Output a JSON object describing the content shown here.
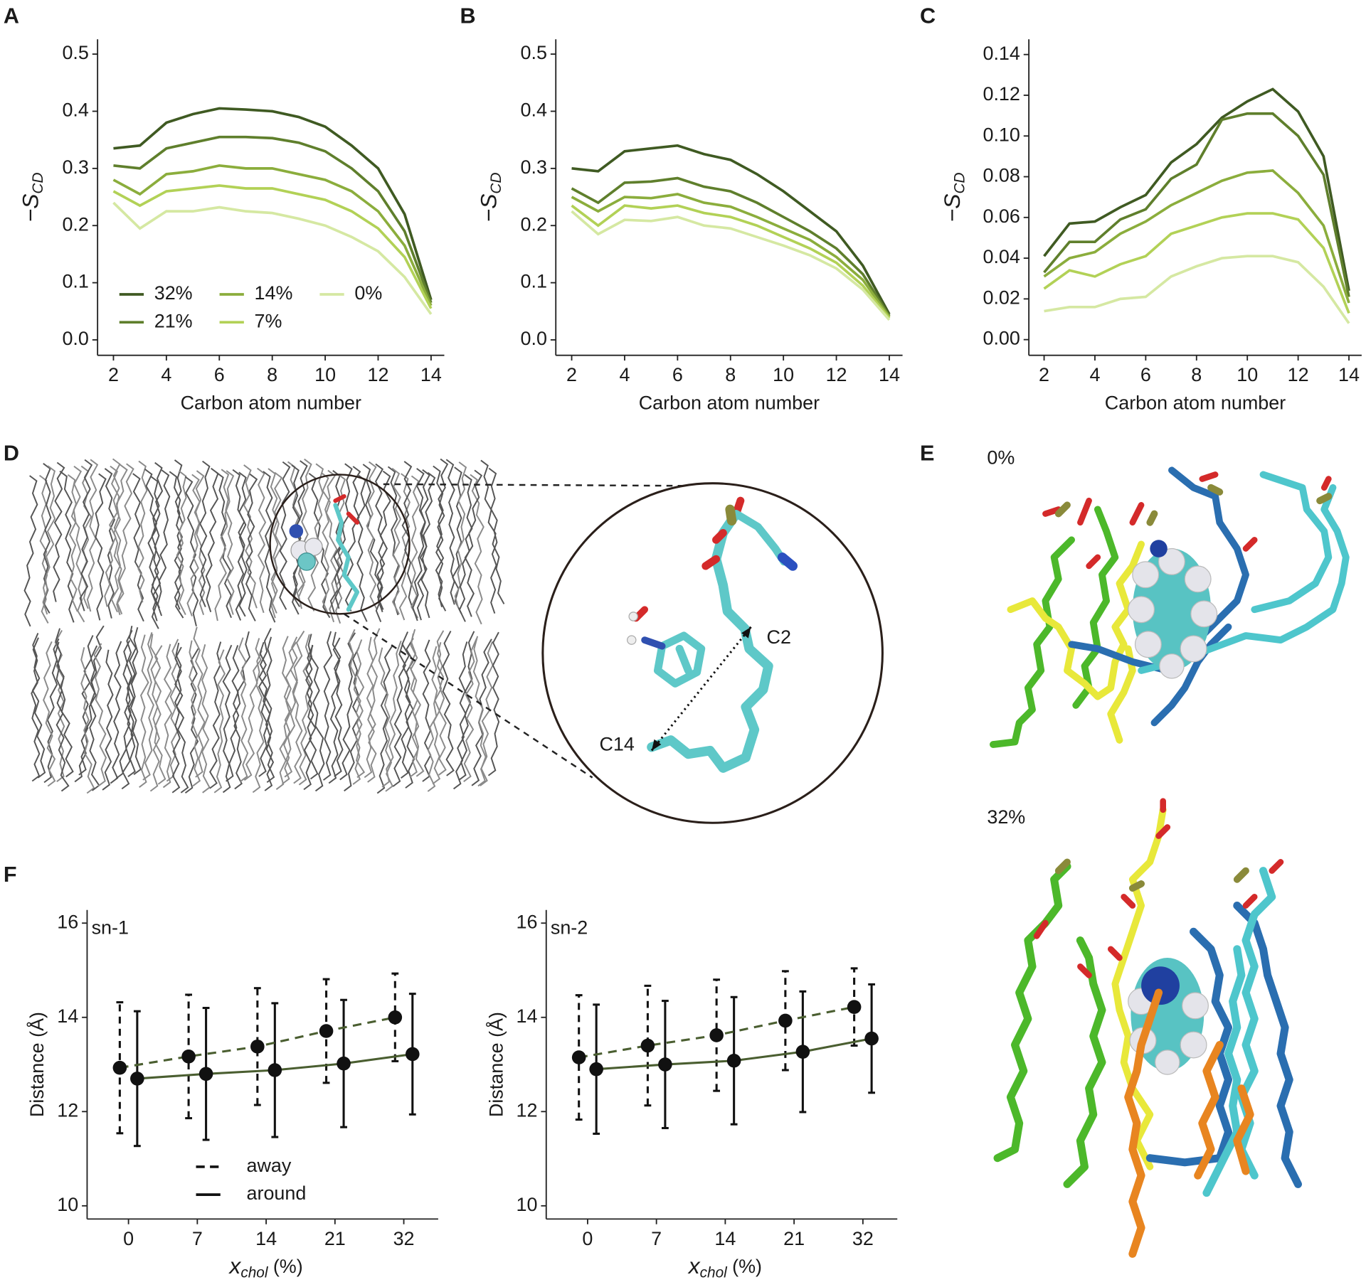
{
  "panel_labels": [
    "A",
    "B",
    "C",
    "D",
    "E",
    "F"
  ],
  "panel_d": {
    "labels": [
      "C2",
      "C14"
    ]
  },
  "panel_e": {
    "labels": [
      "0%",
      "32%"
    ]
  },
  "chart_data": [
    {
      "type": "line",
      "x_label": "Carbon atom number",
      "y_label": {
        "text": "−S",
        "subscript": "CD"
      },
      "x": [
        2,
        3,
        4,
        5,
        6,
        7,
        8,
        9,
        10,
        11,
        12,
        13,
        14
      ],
      "xlim": [
        1.4,
        14.5
      ],
      "xticks": [
        2,
        4,
        6,
        8,
        10,
        12,
        14
      ],
      "ylim": [
        -0.027,
        0.526
      ],
      "yticks": [
        {
          "value": 0,
          "label": "0.0"
        },
        0.1,
        0.2,
        0.3,
        0.4,
        0.5
      ],
      "legend": "bottom-left",
      "series": [
        {
          "name": "32%",
          "color": "#3f5a22",
          "values": [
            0.335,
            0.34,
            0.38,
            0.395,
            0.405,
            0.403,
            0.4,
            0.39,
            0.373,
            0.34,
            0.3,
            0.22,
            0.07
          ]
        },
        {
          "name": "21%",
          "color": "#5f7f2c",
          "values": [
            0.305,
            0.3,
            0.335,
            0.345,
            0.355,
            0.355,
            0.353,
            0.345,
            0.33,
            0.3,
            0.26,
            0.19,
            0.065
          ]
        },
        {
          "name": "14%",
          "color": "#8bad3c",
          "values": [
            0.28,
            0.255,
            0.29,
            0.295,
            0.305,
            0.3,
            0.3,
            0.29,
            0.28,
            0.26,
            0.225,
            0.165,
            0.06
          ]
        },
        {
          "name": "7%",
          "color": "#b2d156",
          "values": [
            0.26,
            0.235,
            0.26,
            0.265,
            0.27,
            0.265,
            0.265,
            0.255,
            0.245,
            0.225,
            0.195,
            0.145,
            0.055
          ]
        },
        {
          "name": "0%",
          "color": "#d5e8a2",
          "values": [
            0.24,
            0.195,
            0.225,
            0.225,
            0.232,
            0.225,
            0.222,
            0.212,
            0.2,
            0.18,
            0.155,
            0.11,
            0.045
          ]
        }
      ]
    },
    {
      "type": "line",
      "x_label": "Carbon atom number",
      "y_label": {
        "text": "−S",
        "subscript": "CD"
      },
      "x": [
        2,
        3,
        4,
        5,
        6,
        7,
        8,
        9,
        10,
        11,
        12,
        13,
        14
      ],
      "xlim": [
        1.4,
        14.5
      ],
      "xticks": [
        2,
        4,
        6,
        8,
        10,
        12,
        14
      ],
      "ylim": [
        -0.027,
        0.526
      ],
      "yticks": [
        {
          "value": 0,
          "label": "0.0"
        },
        0.1,
        0.2,
        0.3,
        0.4,
        0.5
      ],
      "series": [
        {
          "color": "#3f5a22",
          "values": [
            0.3,
            0.295,
            0.33,
            0.335,
            0.34,
            0.325,
            0.315,
            0.29,
            0.26,
            0.225,
            0.19,
            0.13,
            0.045
          ]
        },
        {
          "color": "#5f7f2c",
          "values": [
            0.265,
            0.24,
            0.275,
            0.277,
            0.283,
            0.268,
            0.26,
            0.24,
            0.215,
            0.19,
            0.16,
            0.115,
            0.042
          ]
        },
        {
          "color": "#8bad3c",
          "values": [
            0.25,
            0.225,
            0.25,
            0.248,
            0.255,
            0.24,
            0.233,
            0.215,
            0.195,
            0.175,
            0.145,
            0.105,
            0.04
          ]
        },
        {
          "color": "#b2d156",
          "values": [
            0.235,
            0.2,
            0.235,
            0.23,
            0.235,
            0.222,
            0.215,
            0.2,
            0.18,
            0.16,
            0.135,
            0.095,
            0.038
          ]
        },
        {
          "color": "#d5e8a2",
          "values": [
            0.225,
            0.185,
            0.21,
            0.208,
            0.215,
            0.2,
            0.195,
            0.18,
            0.165,
            0.148,
            0.125,
            0.088,
            0.035
          ]
        }
      ]
    },
    {
      "type": "line",
      "x_label": "Carbon atom number",
      "y_label": {
        "text": "−S",
        "subscript": "CD"
      },
      "x": [
        2,
        3,
        4,
        5,
        6,
        7,
        8,
        9,
        10,
        11,
        12,
        13,
        14
      ],
      "xlim": [
        1.4,
        14.5
      ],
      "xticks": [
        2,
        4,
        6,
        8,
        10,
        12,
        14
      ],
      "ylim": [
        -0.0077,
        0.1475
      ],
      "yticks": [
        {
          "value": 0,
          "label": "0.00"
        },
        0.02,
        0.04,
        0.06,
        0.08,
        {
          "value": 0.1,
          "label": "0.10"
        },
        0.12,
        0.14
      ],
      "series": [
        {
          "color": "#3f5a22",
          "values": [
            0.041,
            0.057,
            0.058,
            0.065,
            0.071,
            0.087,
            0.096,
            0.109,
            0.117,
            0.123,
            0.112,
            0.09,
            0.024
          ]
        },
        {
          "color": "#5f7f2c",
          "values": [
            0.033,
            0.048,
            0.048,
            0.059,
            0.064,
            0.079,
            0.086,
            0.108,
            0.111,
            0.111,
            0.1,
            0.081,
            0.021
          ]
        },
        {
          "color": "#8bad3c",
          "values": [
            0.031,
            0.04,
            0.043,
            0.052,
            0.058,
            0.066,
            0.072,
            0.078,
            0.082,
            0.083,
            0.072,
            0.056,
            0.018
          ]
        },
        {
          "color": "#b2d156",
          "values": [
            0.025,
            0.034,
            0.031,
            0.037,
            0.041,
            0.052,
            0.056,
            0.06,
            0.062,
            0.062,
            0.059,
            0.045,
            0.013
          ]
        },
        {
          "color": "#d5e8a2",
          "values": [
            0.014,
            0.016,
            0.016,
            0.02,
            0.021,
            0.031,
            0.036,
            0.04,
            0.041,
            0.041,
            0.038,
            0.026,
            0.008
          ]
        }
      ]
    },
    {
      "type": "errorbar",
      "annotation": "sn-1",
      "y_label": "Distance (Å)",
      "x_label": {
        "text": "x",
        "subscript": "chol",
        "suffix": "(%)"
      },
      "categories": [
        "0",
        "7",
        "14",
        "21",
        "32"
      ],
      "ylim": [
        9.72,
        16.28
      ],
      "yticks": [
        10,
        12,
        14,
        16
      ],
      "legend": "bottom-left",
      "series": [
        {
          "name": "away",
          "line_style": "dashed",
          "color": "#4a5e30",
          "values": [
            12.93,
            13.17,
            13.38,
            13.71,
            14.0
          ],
          "errors": [
            1.39,
            1.31,
            1.24,
            1.1,
            0.93
          ]
        },
        {
          "name": "around",
          "line_style": "solid",
          "color": "#4a5e30",
          "values": [
            12.7,
            12.8,
            12.88,
            13.02,
            13.22
          ],
          "errors": [
            1.43,
            1.4,
            1.42,
            1.35,
            1.28
          ]
        }
      ]
    },
    {
      "type": "errorbar",
      "annotation": "sn-2",
      "y_label": "Distance (Å)",
      "x_label": {
        "text": "x",
        "subscript": "chol",
        "suffix": "(%)"
      },
      "categories": [
        "0",
        "7",
        "14",
        "21",
        "32"
      ],
      "ylim": [
        9.72,
        16.28
      ],
      "yticks": [
        10,
        12,
        14,
        16
      ],
      "series": [
        {
          "line_style": "dashed",
          "color": "#4a5e30",
          "values": [
            13.15,
            13.4,
            13.62,
            13.93,
            14.22
          ],
          "errors": [
            1.32,
            1.27,
            1.18,
            1.05,
            0.82
          ]
        },
        {
          "line_style": "solid",
          "color": "#4a5e30",
          "values": [
            12.9,
            13.0,
            13.08,
            13.27,
            13.55
          ],
          "errors": [
            1.37,
            1.35,
            1.35,
            1.28,
            1.15
          ]
        }
      ]
    }
  ]
}
